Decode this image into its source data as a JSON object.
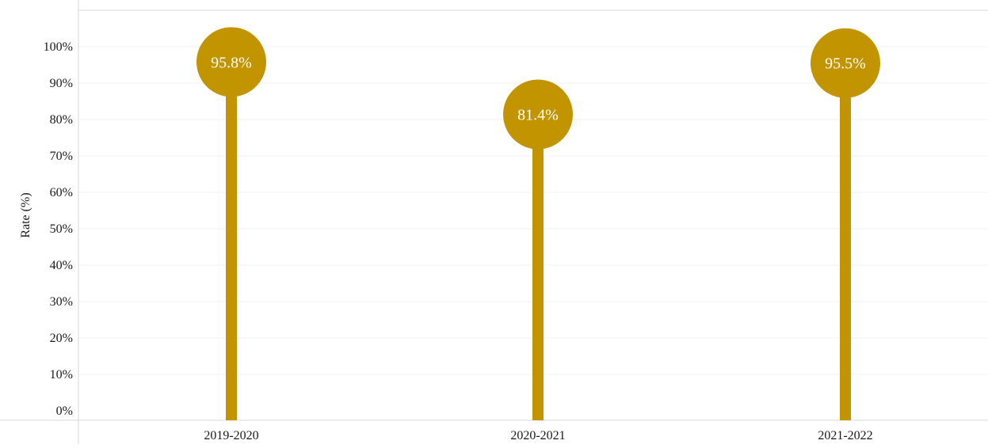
{
  "chart_data": {
    "type": "lollipop",
    "categories": [
      "2019-2020",
      "2020-2021",
      "2021-2022"
    ],
    "values": [
      95.8,
      81.4,
      95.5
    ],
    "data_labels": [
      "95.8%",
      "81.4%",
      "95.5%"
    ],
    "ylabel": "Rate (%)",
    "xlabel": "",
    "ylim": [
      0,
      100
    ],
    "yticks": [
      0,
      10,
      20,
      30,
      40,
      50,
      60,
      70,
      80,
      90,
      100
    ],
    "ytick_labels": [
      "0%",
      "10%",
      "20%",
      "30%",
      "40%",
      "50%",
      "60%",
      "70%",
      "80%",
      "90%",
      "100%"
    ],
    "grid": true,
    "legend": "none",
    "colors": {
      "mark": "#C29400",
      "label_text": "#FFFFFF",
      "grid": "#EFEFEF",
      "axis": "#D9D9D9",
      "text": "#1A1A1A"
    }
  }
}
